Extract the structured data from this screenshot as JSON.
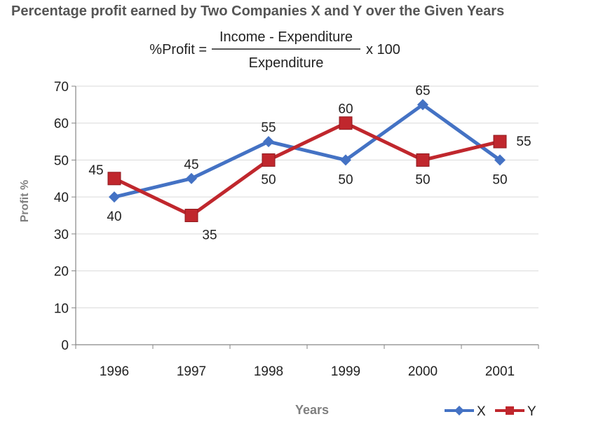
{
  "chart_data": {
    "type": "line",
    "title": "Percentage profit earned by Two Companies X and Y over the Given Years",
    "formula": {
      "lhs": "%Profit =",
      "numerator": "Income - Expenditure",
      "denominator": "Expenditure",
      "rhs": "x 100"
    },
    "xlabel": "Years",
    "ylabel": "Profit %",
    "categories": [
      "1996",
      "1997",
      "1998",
      "1999",
      "2000",
      "2001"
    ],
    "ylim": [
      0,
      70
    ],
    "yticks": [
      0,
      10,
      20,
      30,
      40,
      50,
      60,
      70
    ],
    "grid": true,
    "legend_position": "bottom-right",
    "series": [
      {
        "name": "X",
        "values": [
          40,
          45,
          55,
          50,
          65,
          50
        ],
        "color": "#4472C4",
        "marker": "diamond"
      },
      {
        "name": "Y",
        "values": [
          45,
          35,
          50,
          60,
          50,
          55
        ],
        "color": "#C0272D",
        "marker": "square"
      }
    ],
    "colors": {
      "title": "#555555",
      "axis_text": "#222222",
      "axis_title": "#7f7f7f",
      "grid": "#d9d9d9",
      "axis_line": "#868686"
    }
  }
}
